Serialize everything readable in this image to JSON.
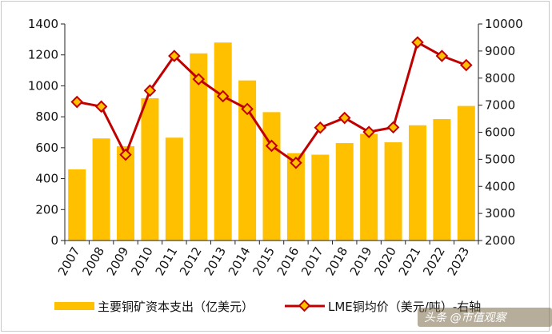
{
  "chart_data": {
    "type": "bar+line",
    "categories": [
      "2007",
      "2008",
      "2009",
      "2010",
      "2011",
      "2012",
      "2013",
      "2014",
      "2015",
      "2016",
      "2017",
      "2018",
      "2019",
      "2020",
      "2021",
      "2022",
      "2023"
    ],
    "series": [
      {
        "name": "主要铜矿资本支出（亿美元）",
        "type": "bar",
        "axis": "left",
        "color": "#FFC000",
        "values": [
          460,
          660,
          610,
          920,
          665,
          1210,
          1280,
          1035,
          830,
          565,
          555,
          630,
          690,
          635,
          745,
          785,
          870
        ]
      },
      {
        "name": "LME铜均价（美元/吨）-右轴",
        "type": "line",
        "axis": "right",
        "color": "#C00000",
        "marker_color": "#FFC000",
        "values": [
          7120,
          6950,
          5170,
          7540,
          8820,
          7960,
          7330,
          6860,
          5500,
          4870,
          6170,
          6530,
          6010,
          6180,
          9320,
          8820,
          8480
        ]
      }
    ],
    "y_left": {
      "min": 0,
      "max": 1400,
      "step": 200,
      "ticks": [
        "0",
        "200",
        "400",
        "600",
        "800",
        "1000",
        "1200",
        "1400"
      ]
    },
    "y_right": {
      "min": 2000,
      "max": 10000,
      "step": 1000,
      "ticks": [
        "2000",
        "3000",
        "4000",
        "5000",
        "6000",
        "7000",
        "8000",
        "9000",
        "10000"
      ]
    },
    "legend_position": "bottom",
    "grid": false
  },
  "watermark": "头条 @市值观察"
}
